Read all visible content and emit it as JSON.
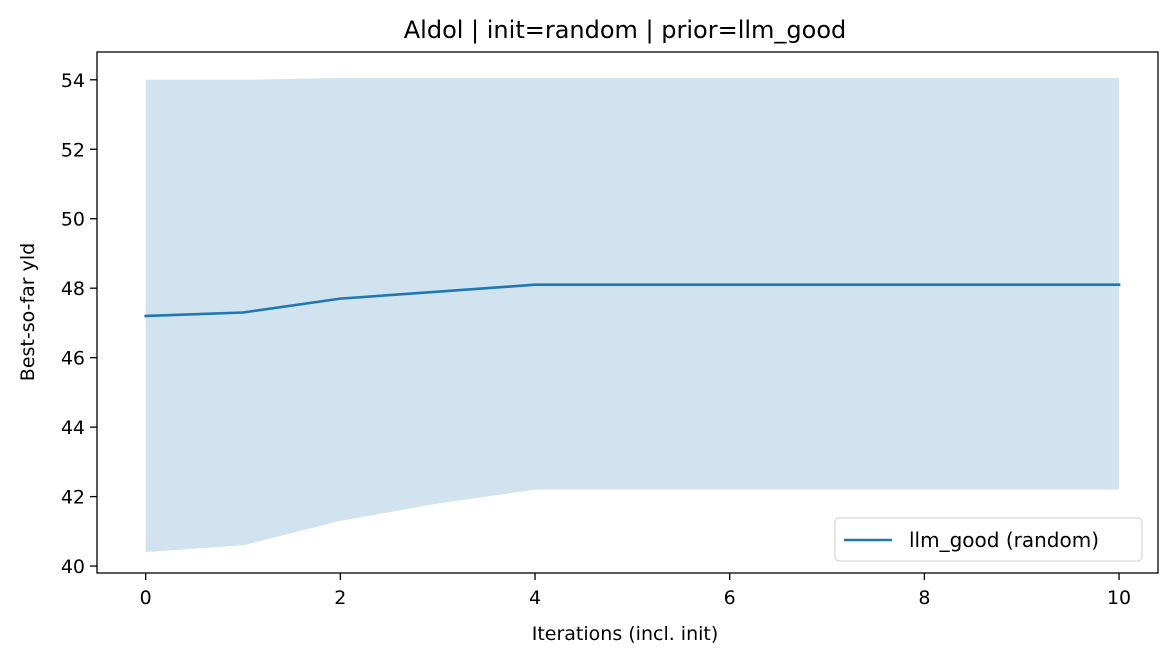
{
  "chart_data": {
    "type": "line",
    "title": "Aldol | init=random | prior=llm_good",
    "xlabel": "Iterations (incl. init)",
    "ylabel": "Best-so-far yld",
    "xlim": [
      -0.5,
      10.4
    ],
    "ylim": [
      39.8,
      54.8
    ],
    "xticks": [
      0,
      2,
      4,
      6,
      8,
      10
    ],
    "yticks": [
      40,
      42,
      44,
      46,
      48,
      50,
      52,
      54
    ],
    "grid": false,
    "legend_position": "lower-right",
    "series": [
      {
        "name": "llm_good (random)",
        "color": "#1f77b4",
        "band_color": "#d1e3ef",
        "x": [
          0,
          1,
          2,
          3,
          4,
          5,
          6,
          7,
          8,
          9,
          10
        ],
        "y": [
          47.2,
          47.3,
          47.7,
          47.9,
          48.1,
          48.1,
          48.1,
          48.1,
          48.1,
          48.1,
          48.1
        ],
        "lower": [
          40.4,
          40.6,
          41.3,
          41.8,
          42.2,
          42.2,
          42.2,
          42.2,
          42.2,
          42.2,
          42.2
        ],
        "upper": [
          54.0,
          54.0,
          54.05,
          54.05,
          54.05,
          54.05,
          54.05,
          54.05,
          54.05,
          54.05,
          54.05
        ]
      }
    ]
  }
}
